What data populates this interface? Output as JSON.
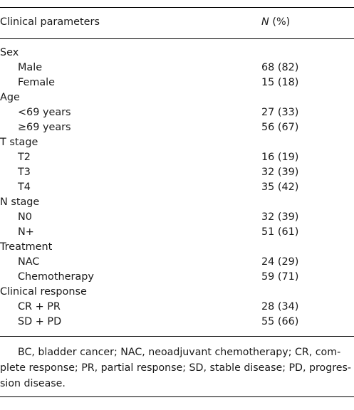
{
  "table": {
    "header": {
      "parameter": "Clinical parameters",
      "n_label": "N",
      "pct_label": " (%)"
    },
    "groups": [
      {
        "label": "Sex",
        "rows": [
          {
            "label": "Male",
            "value": "68 (82)"
          },
          {
            "label": "Female",
            "value": "15 (18)"
          }
        ]
      },
      {
        "label": "Age",
        "rows": [
          {
            "label": "<69 years",
            "value": "27 (33)"
          },
          {
            "label": "≥69 years",
            "value": "56 (67)"
          }
        ]
      },
      {
        "label": "T stage",
        "rows": [
          {
            "label": "T2",
            "value": "16 (19)"
          },
          {
            "label": "T3",
            "value": "32 (39)"
          },
          {
            "label": "T4",
            "value": "35 (42)"
          }
        ]
      },
      {
        "label": "N stage",
        "rows": [
          {
            "label": "N0",
            "value": "32 (39)"
          },
          {
            "label": "N+",
            "value": "51 (61)"
          }
        ]
      },
      {
        "label": "Treatment",
        "rows": [
          {
            "label": "NAC",
            "value": "24 (29)"
          },
          {
            "label": "Chemotherapy",
            "value": "59 (71)"
          }
        ]
      },
      {
        "label": "Clinical response",
        "rows": [
          {
            "label": "CR + PR",
            "value": "28 (34)"
          },
          {
            "label": "SD + PD",
            "value": "55 (66)"
          }
        ]
      }
    ]
  },
  "footnote": {
    "line1": "BC, bladder cancer; NAC, neoadjuvant chemotherapy; CR, com-",
    "line2": "plete response; PR, partial response; SD, stable disease; PD, progres-",
    "line3": "sion disease."
  }
}
